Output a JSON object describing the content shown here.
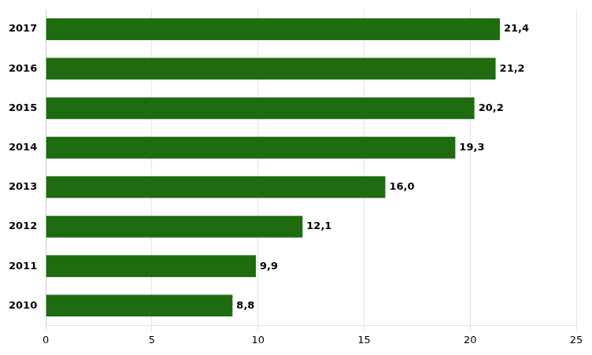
{
  "chart_data": {
    "type": "bar",
    "orientation": "horizontal",
    "categories": [
      "2010",
      "2011",
      "2012",
      "2013",
      "2014",
      "2015",
      "2016",
      "2017"
    ],
    "values": [
      8.8,
      9.9,
      12.1,
      16.0,
      19.3,
      20.2,
      21.2,
      21.4
    ],
    "value_labels": [
      "8,8",
      "9,9",
      "12,1",
      "16,0",
      "19,3",
      "20,2",
      "21,2",
      "21,4"
    ],
    "data_labels": true,
    "color": "#1e6b10",
    "xlim": [
      0,
      25
    ],
    "xticks": [
      0,
      5,
      10,
      15,
      20,
      25
    ],
    "grid": true
  }
}
